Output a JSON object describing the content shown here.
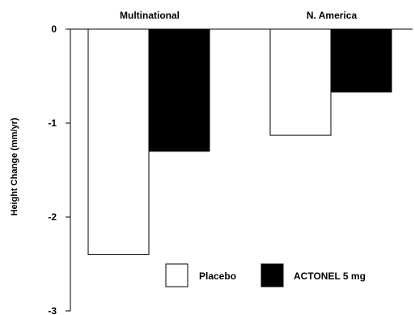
{
  "chart_data": {
    "type": "bar",
    "categories": [
      "Multinational",
      "N. America"
    ],
    "series": [
      {
        "name": "Placebo",
        "values": [
          -2.4,
          -1.13
        ],
        "color": "#ffffff"
      },
      {
        "name": "ACTONEL 5 mg",
        "values": [
          -1.3,
          -0.67
        ],
        "color": "#000000"
      }
    ],
    "ylabel": "Height Change (mm/yr)",
    "ylim": [
      -3,
      0
    ],
    "yticks": [
      0,
      -1,
      -2,
      -3
    ],
    "ytick_labels": [
      "0",
      "-1",
      "-2",
      "-3"
    ],
    "grid": false,
    "legend_position": "bottom-right"
  }
}
